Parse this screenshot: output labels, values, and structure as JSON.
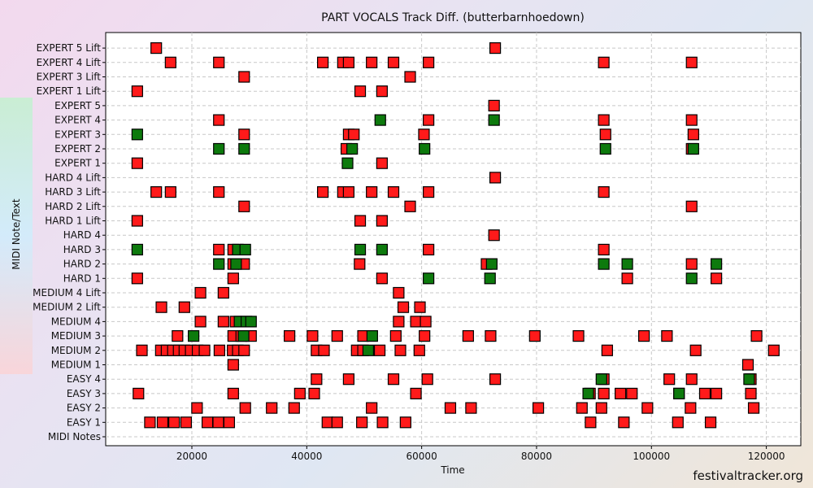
{
  "watermark": "festivaltracker.org",
  "chart_data": {
    "type": "scatter",
    "title": "PART VOCALS Track Diff. (butterbarnhoedown)",
    "xlabel": "Time",
    "ylabel": "MIDI Note/Text",
    "xlim": [
      5000,
      126000
    ],
    "xticks": [
      20000,
      40000,
      60000,
      80000,
      100000,
      120000
    ],
    "grid": true,
    "colors": {
      "red": "#ff1a1a",
      "green": "#0d7a0d"
    },
    "categories": [
      "MIDI Notes",
      "EASY 1",
      "EASY 2",
      "EASY 3",
      "EASY 4",
      "MEDIUM 1",
      "MEDIUM 2",
      "MEDIUM 3",
      "MEDIUM 4",
      "MEDIUM 2 Lift",
      "MEDIUM 4 Lift",
      "HARD 1",
      "HARD 2",
      "HARD 3",
      "HARD 4",
      "HARD 1 Lift",
      "HARD 2 Lift",
      "HARD 3 Lift",
      "HARD 4 Lift",
      "EXPERT 1",
      "EXPERT 2",
      "EXPERT 3",
      "EXPERT 4",
      "EXPERT 5",
      "EXPERT 1 Lift",
      "EXPERT 3 Lift",
      "EXPERT 4 Lift",
      "EXPERT 5 Lift"
    ],
    "series": [
      {
        "color": "red",
        "points": [
          [
            "EXPERT 5 Lift",
            13800
          ],
          [
            "EXPERT 5 Lift",
            72800
          ],
          [
            "EXPERT 4 Lift",
            16300
          ],
          [
            "EXPERT 4 Lift",
            24700
          ],
          [
            "EXPERT 4 Lift",
            42800
          ],
          [
            "EXPERT 4 Lift",
            46300
          ],
          [
            "EXPERT 4 Lift",
            47300
          ],
          [
            "EXPERT 4 Lift",
            51300
          ],
          [
            "EXPERT 4 Lift",
            55100
          ],
          [
            "EXPERT 4 Lift",
            61200
          ],
          [
            "EXPERT 4 Lift",
            91700
          ],
          [
            "EXPERT 4 Lift",
            107000
          ],
          [
            "EXPERT 3 Lift",
            29100
          ],
          [
            "EXPERT 3 Lift",
            58000
          ],
          [
            "EXPERT 1 Lift",
            10500
          ],
          [
            "EXPERT 1 Lift",
            49300
          ],
          [
            "EXPERT 1 Lift",
            53100
          ],
          [
            "EXPERT 5",
            72600
          ],
          [
            "EXPERT 4",
            24700
          ],
          [
            "EXPERT 4",
            61200
          ],
          [
            "EXPERT 4",
            91700
          ],
          [
            "EXPERT 4",
            107000
          ],
          [
            "EXPERT 3",
            29100
          ],
          [
            "EXPERT 3",
            47300
          ],
          [
            "EXPERT 3",
            48200
          ],
          [
            "EXPERT 3",
            60400
          ],
          [
            "EXPERT 3",
            92000
          ],
          [
            "EXPERT 3",
            107300
          ],
          [
            "EXPERT 2",
            46900
          ],
          [
            "EXPERT 2",
            107000
          ],
          [
            "EXPERT 1",
            10500
          ],
          [
            "EXPERT 1",
            53100
          ],
          [
            "HARD 4 Lift",
            72800
          ],
          [
            "HARD 3 Lift",
            13800
          ],
          [
            "HARD 3 Lift",
            16300
          ],
          [
            "HARD 3 Lift",
            24700
          ],
          [
            "HARD 3 Lift",
            42800
          ],
          [
            "HARD 3 Lift",
            46300
          ],
          [
            "HARD 3 Lift",
            47300
          ],
          [
            "HARD 3 Lift",
            51300
          ],
          [
            "HARD 3 Lift",
            55100
          ],
          [
            "HARD 3 Lift",
            61200
          ],
          [
            "HARD 3 Lift",
            91700
          ],
          [
            "HARD 2 Lift",
            29100
          ],
          [
            "HARD 2 Lift",
            58000
          ],
          [
            "HARD 2 Lift",
            107000
          ],
          [
            "HARD 1 Lift",
            10500
          ],
          [
            "HARD 1 Lift",
            49300
          ],
          [
            "HARD 1 Lift",
            53100
          ],
          [
            "HARD 4",
            72600
          ],
          [
            "HARD 3",
            24700
          ],
          [
            "HARD 3",
            27200
          ],
          [
            "HARD 3",
            61200
          ],
          [
            "HARD 3",
            91700
          ],
          [
            "HARD 2",
            27200
          ],
          [
            "HARD 2",
            29100
          ],
          [
            "HARD 2",
            49200
          ],
          [
            "HARD 2",
            71300
          ],
          [
            "HARD 2",
            107000
          ],
          [
            "HARD 1",
            10500
          ],
          [
            "HARD 1",
            27200
          ],
          [
            "HARD 1",
            53100
          ],
          [
            "HARD 1",
            95800
          ],
          [
            "HARD 1",
            111300
          ],
          [
            "MEDIUM 4 Lift",
            21500
          ],
          [
            "MEDIUM 4 Lift",
            25500
          ],
          [
            "MEDIUM 4 Lift",
            56000
          ],
          [
            "MEDIUM 2 Lift",
            14700
          ],
          [
            "MEDIUM 2 Lift",
            18700
          ],
          [
            "MEDIUM 2 Lift",
            56800
          ],
          [
            "MEDIUM 2 Lift",
            59700
          ],
          [
            "MEDIUM 4",
            21500
          ],
          [
            "MEDIUM 4",
            25500
          ],
          [
            "MEDIUM 4",
            27600
          ],
          [
            "MEDIUM 4",
            56000
          ],
          [
            "MEDIUM 4",
            59000
          ],
          [
            "MEDIUM 4",
            60700
          ],
          [
            "MEDIUM 3",
            17500
          ],
          [
            "MEDIUM 3",
            27200
          ],
          [
            "MEDIUM 3",
            28600
          ],
          [
            "MEDIUM 3",
            30300
          ],
          [
            "MEDIUM 3",
            37000
          ],
          [
            "MEDIUM 3",
            41000
          ],
          [
            "MEDIUM 3",
            45300
          ],
          [
            "MEDIUM 3",
            49800
          ],
          [
            "MEDIUM 3",
            55500
          ],
          [
            "MEDIUM 3",
            60500
          ],
          [
            "MEDIUM 3",
            68100
          ],
          [
            "MEDIUM 3",
            72000
          ],
          [
            "MEDIUM 3",
            79700
          ],
          [
            "MEDIUM 3",
            87300
          ],
          [
            "MEDIUM 3",
            98700
          ],
          [
            "MEDIUM 3",
            102700
          ],
          [
            "MEDIUM 3",
            118300
          ],
          [
            "MEDIUM 2",
            11300
          ],
          [
            "MEDIUM 2",
            14600
          ],
          [
            "MEDIUM 2",
            15600
          ],
          [
            "MEDIUM 2",
            16700
          ],
          [
            "MEDIUM 2",
            17700
          ],
          [
            "MEDIUM 2",
            18700
          ],
          [
            "MEDIUM 2",
            19800
          ],
          [
            "MEDIUM 2",
            21000
          ],
          [
            "MEDIUM 2",
            22200
          ],
          [
            "MEDIUM 2",
            24800
          ],
          [
            "MEDIUM 2",
            27100
          ],
          [
            "MEDIUM 2",
            28000
          ],
          [
            "MEDIUM 2",
            29100
          ],
          [
            "MEDIUM 2",
            41700
          ],
          [
            "MEDIUM 2",
            43000
          ],
          [
            "MEDIUM 2",
            48700
          ],
          [
            "MEDIUM 2",
            49800
          ],
          [
            "MEDIUM 2",
            52700
          ],
          [
            "MEDIUM 2",
            56300
          ],
          [
            "MEDIUM 2",
            59600
          ],
          [
            "MEDIUM 2",
            92300
          ],
          [
            "MEDIUM 2",
            107700
          ],
          [
            "MEDIUM 2",
            121300
          ],
          [
            "MEDIUM 1",
            27200
          ],
          [
            "MEDIUM 1",
            116800
          ],
          [
            "EASY 4",
            41700
          ],
          [
            "EASY 4",
            47300
          ],
          [
            "EASY 4",
            55100
          ],
          [
            "EASY 4",
            61000
          ],
          [
            "EASY 4",
            72800
          ],
          [
            "EASY 4",
            91700
          ],
          [
            "EASY 4",
            103100
          ],
          [
            "EASY 4",
            107000
          ],
          [
            "EASY 4",
            117300
          ],
          [
            "EASY 3",
            10700
          ],
          [
            "EASY 3",
            27200
          ],
          [
            "EASY 3",
            38800
          ],
          [
            "EASY 3",
            41300
          ],
          [
            "EASY 3",
            59000
          ],
          [
            "EASY 3",
            89300
          ],
          [
            "EASY 3",
            91700
          ],
          [
            "EASY 3",
            94600
          ],
          [
            "EASY 3",
            96600
          ],
          [
            "EASY 3",
            104800
          ],
          [
            "EASY 3",
            109300
          ],
          [
            "EASY 3",
            111300
          ],
          [
            "EASY 3",
            117300
          ],
          [
            "EASY 2",
            20900
          ],
          [
            "EASY 2",
            29300
          ],
          [
            "EASY 2",
            33900
          ],
          [
            "EASY 2",
            37800
          ],
          [
            "EASY 2",
            51300
          ],
          [
            "EASY 2",
            65000
          ],
          [
            "EASY 2",
            68600
          ],
          [
            "EASY 2",
            80300
          ],
          [
            "EASY 2",
            87900
          ],
          [
            "EASY 2",
            91300
          ],
          [
            "EASY 2",
            99300
          ],
          [
            "EASY 2",
            106800
          ],
          [
            "EASY 2",
            117800
          ],
          [
            "EASY 1",
            12700
          ],
          [
            "EASY 1",
            14900
          ],
          [
            "EASY 1",
            16900
          ],
          [
            "EASY 1",
            19000
          ],
          [
            "EASY 1",
            22700
          ],
          [
            "EASY 1",
            24600
          ],
          [
            "EASY 1",
            26500
          ],
          [
            "EASY 1",
            43600
          ],
          [
            "EASY 1",
            45300
          ],
          [
            "EASY 1",
            49600
          ],
          [
            "EASY 1",
            53200
          ],
          [
            "EASY 1",
            57200
          ],
          [
            "EASY 1",
            89400
          ],
          [
            "EASY 1",
            95200
          ],
          [
            "EASY 1",
            104600
          ],
          [
            "EASY 1",
            110300
          ]
        ]
      },
      {
        "color": "green",
        "points": [
          [
            "EXPERT 4",
            52800
          ],
          [
            "EXPERT 4",
            72600
          ],
          [
            "EXPERT 3",
            10500
          ],
          [
            "EXPERT 2",
            24700
          ],
          [
            "EXPERT 2",
            29100
          ],
          [
            "EXPERT 2",
            47900
          ],
          [
            "EXPERT 2",
            60500
          ],
          [
            "EXPERT 2",
            92000
          ],
          [
            "EXPERT 2",
            107300
          ],
          [
            "EXPERT 1",
            47100
          ],
          [
            "HARD 3",
            10500
          ],
          [
            "HARD 3",
            28000
          ],
          [
            "HARD 3",
            29300
          ],
          [
            "HARD 3",
            49300
          ],
          [
            "HARD 3",
            53100
          ],
          [
            "HARD 2",
            24700
          ],
          [
            "HARD 2",
            27700
          ],
          [
            "HARD 2",
            72200
          ],
          [
            "HARD 2",
            91700
          ],
          [
            "HARD 2",
            95800
          ],
          [
            "HARD 2",
            111300
          ],
          [
            "HARD 1",
            61200
          ],
          [
            "HARD 1",
            71900
          ],
          [
            "HARD 1",
            107000
          ],
          [
            "MEDIUM 4",
            28300
          ],
          [
            "MEDIUM 4",
            29500
          ],
          [
            "MEDIUM 4",
            30300
          ],
          [
            "MEDIUM 3",
            20300
          ],
          [
            "MEDIUM 3",
            29000
          ],
          [
            "MEDIUM 3",
            51400
          ],
          [
            "MEDIUM 2",
            50700
          ],
          [
            "EASY 4",
            91300
          ],
          [
            "EASY 4",
            117000
          ],
          [
            "EASY 3",
            89000
          ],
          [
            "EASY 3",
            104800
          ]
        ]
      }
    ]
  }
}
